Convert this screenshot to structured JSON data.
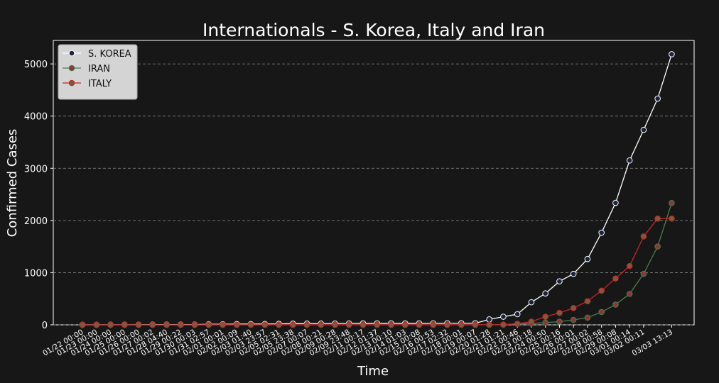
{
  "chart_data": {
    "type": "line",
    "title": "Internationals - S. Korea, Italy and Iran",
    "x_label": "Time",
    "y_label": "Confirmed Cases",
    "categories": [
      "01/22 00:00",
      "01/23 00:00",
      "01/24 00:00",
      "01/25 00:00",
      "01/26 00:00",
      "01/27 00:02",
      "01/28 04:40",
      "01/29 00:22",
      "01/30 00:03",
      "01/31 02:57",
      "02/01 00:01",
      "02/02 00:09",
      "02/03 01:40",
      "02/03 23:57",
      "02/05 02:31",
      "02/05 23:38",
      "02/07 00:07",
      "02/08 00:21",
      "02/09 00:28",
      "02/09 23:48",
      "02/11 00:17",
      "02/12 01:37",
      "02/13 00:10",
      "02/14 01:03",
      "02/15 00:08",
      "02/16 00:53",
      "02/17 02:32",
      "02/18 00:01",
      "02/19 00:07",
      "02/20 01:28",
      "02/21 01:21",
      "02/22 00:46",
      "02/23 00:18",
      "02/24 00:50",
      "02/25 00:16",
      "02/26 00:01",
      "02/27 00:02",
      "02/28 00:58",
      "02/29 00:08",
      "03/01 00:14",
      "03/02 00:11",
      null,
      "03/03 13:13"
    ],
    "series": [
      {
        "name": "S. KOREA",
        "color": "#ffffff",
        "marker_fill": "#1c2340",
        "values": [
          1,
          1,
          2,
          2,
          3,
          4,
          4,
          4,
          4,
          11,
          12,
          15,
          15,
          16,
          19,
          23,
          24,
          24,
          25,
          27,
          28,
          28,
          28,
          28,
          28,
          29,
          30,
          31,
          31,
          104,
          156,
          204,
          433,
          602,
          833,
          977,
          1261,
          1766,
          2337,
          3150,
          3736,
          4335,
          5186
        ]
      },
      {
        "name": "IRAN",
        "color": "#4f7a4f",
        "marker_fill": "#8a3a36",
        "values": [
          0,
          0,
          0,
          0,
          0,
          0,
          0,
          0,
          0,
          0,
          0,
          0,
          0,
          0,
          0,
          0,
          0,
          0,
          0,
          0,
          0,
          0,
          0,
          0,
          0,
          0,
          0,
          0,
          0,
          2,
          5,
          18,
          28,
          43,
          61,
          95,
          139,
          245,
          388,
          593,
          978,
          1501,
          2336
        ]
      },
      {
        "name": "ITALY",
        "color": "#c0282b",
        "marker_fill": "#7d5a3c",
        "values": [
          0,
          0,
          0,
          0,
          0,
          0,
          0,
          0,
          0,
          2,
          2,
          2,
          2,
          2,
          2,
          2,
          2,
          2,
          2,
          2,
          2,
          2,
          2,
          2,
          2,
          2,
          2,
          2,
          2,
          2,
          3,
          20,
          62,
          155,
          229,
          322,
          453,
          655,
          888,
          1128,
          1694,
          2036,
          2036
        ]
      }
    ],
    "ylim": [
      0,
      5450
    ],
    "yticks": [
      0,
      1000,
      2000,
      3000,
      4000,
      5000
    ],
    "grid": true,
    "legend": "upper left"
  }
}
